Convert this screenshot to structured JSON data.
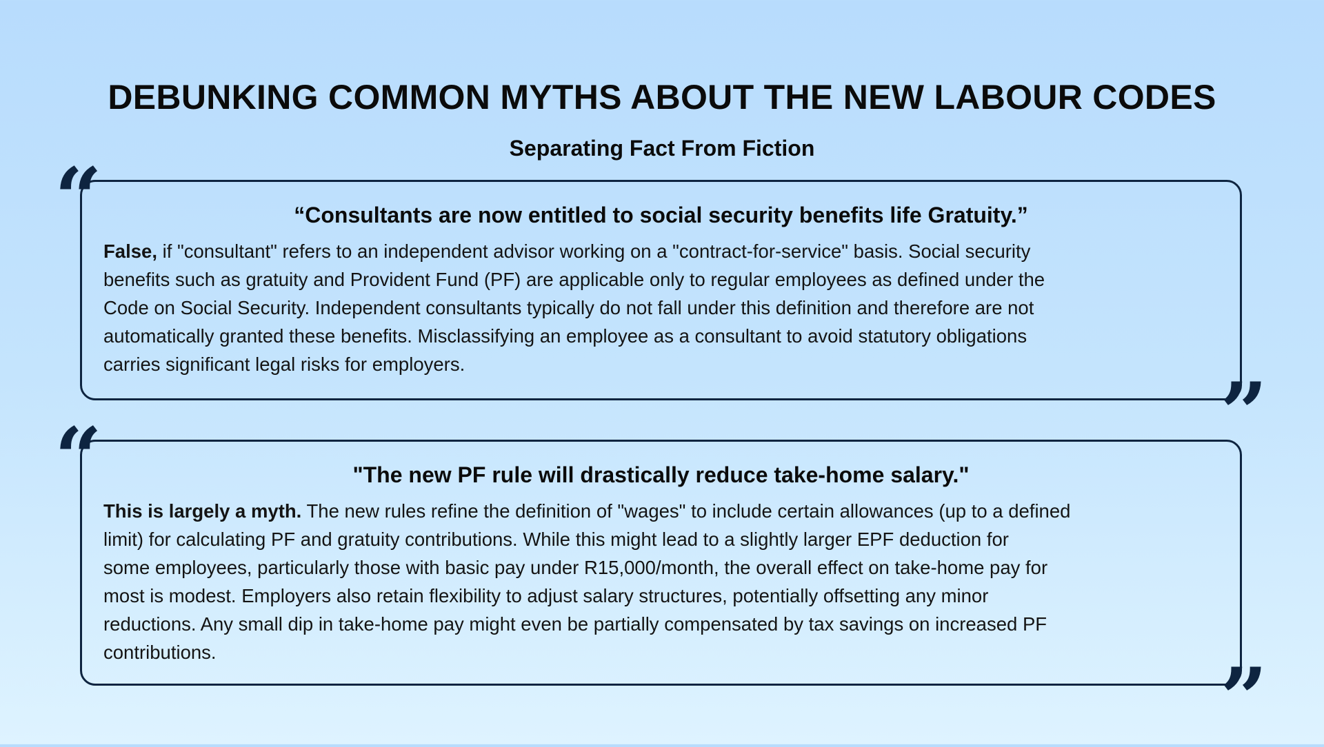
{
  "header": {
    "title": "DEBUNKING COMMON MYTHS ABOUT THE NEW LABOUR CODES",
    "subtitle": "Separating Fact From Fiction"
  },
  "colors": {
    "accent": "#0e2440",
    "background_top": "#b8dcfd",
    "background_bottom": "#def3ff"
  },
  "myths": [
    {
      "quote": "“Consultants are now entitled to social security benefits life Gratuity.”",
      "verdict": "False,",
      "lines": [
        " if \"consultant\" refers to an independent advisor working on a \"contract-for-service\" basis. Social security",
        "benefits such as gratuity and Provident Fund (PF) are applicable only to regular employees as defined under the",
        "Code on Social Security. Independent consultants typically do not fall under this definition and therefore are not",
        "automatically granted these benefits. Misclassifying an employee as a consultant to avoid statutory obligations",
        "carries significant legal risks for employers."
      ]
    },
    {
      "quote": "\"The new PF rule will drastically reduce take-home salary.\"",
      "verdict": "This is largely a myth.",
      "lines": [
        " The new rules refine the definition of \"wages\" to include certain allowances (up to a defined",
        "limit) for calculating PF and gratuity contributions. While this might lead to a slightly larger EPF deduction for",
        "some employees, particularly those with basic pay under R15,000/month, the overall effect on take-home pay for",
        "most is modest. Employers also retain flexibility to adjust salary structures, potentially offsetting any minor",
        "reductions. Any small dip in take-home pay might even be partially compensated by tax savings on increased PF",
        "contributions."
      ]
    }
  ],
  "icons": {
    "open": "open-quote-icon",
    "close": "close-quote-icon"
  }
}
